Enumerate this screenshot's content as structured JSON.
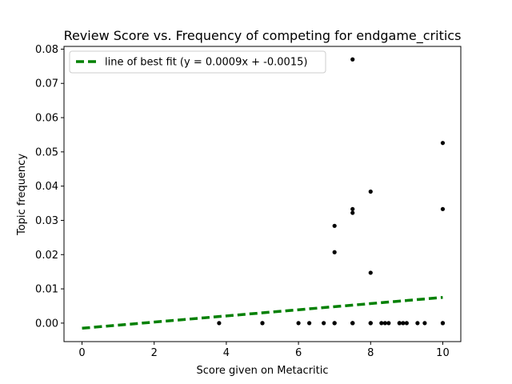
{
  "chart_data": {
    "type": "scatter",
    "title": "Review Score vs. Frequency of competing for endgame_critics",
    "xlabel": "Score given on Metacritic",
    "ylabel": "Topic frequency",
    "xlim": [
      -0.5,
      10.5
    ],
    "ylim": [
      -0.0054,
      0.0808
    ],
    "xticks": [
      0,
      2,
      4,
      6,
      8,
      10
    ],
    "xtick_labels": [
      "0",
      "2",
      "4",
      "6",
      "8",
      "10"
    ],
    "yticks": [
      0.0,
      0.01,
      0.02,
      0.03,
      0.04,
      0.05,
      0.06,
      0.07,
      0.08
    ],
    "ytick_labels": [
      "0.00",
      "0.01",
      "0.02",
      "0.03",
      "0.04",
      "0.05",
      "0.06",
      "0.07",
      "0.08"
    ],
    "grid": false,
    "legend_position": "top-left",
    "points_color": "#000000",
    "points": [
      {
        "x": 3.8,
        "y": 0.0
      },
      {
        "x": 5.0,
        "y": 0.0
      },
      {
        "x": 5.0,
        "y": 0.0
      },
      {
        "x": 6.0,
        "y": 0.0
      },
      {
        "x": 6.3,
        "y": 0.0
      },
      {
        "x": 6.7,
        "y": 0.0
      },
      {
        "x": 7.0,
        "y": 0.0
      },
      {
        "x": 7.0,
        "y": 0.0
      },
      {
        "x": 7.0,
        "y": 0.0207
      },
      {
        "x": 7.0,
        "y": 0.0284
      },
      {
        "x": 7.5,
        "y": 0.0
      },
      {
        "x": 7.5,
        "y": 0.0
      },
      {
        "x": 7.5,
        "y": 0.0
      },
      {
        "x": 7.5,
        "y": 0.0322
      },
      {
        "x": 7.5,
        "y": 0.0333
      },
      {
        "x": 7.5,
        "y": 0.077
      },
      {
        "x": 8.0,
        "y": 0.0
      },
      {
        "x": 8.0,
        "y": 0.0
      },
      {
        "x": 8.0,
        "y": 0.0147
      },
      {
        "x": 8.0,
        "y": 0.0384
      },
      {
        "x": 8.3,
        "y": 0.0
      },
      {
        "x": 8.4,
        "y": 0.0
      },
      {
        "x": 8.5,
        "y": 0.0
      },
      {
        "x": 8.8,
        "y": 0.0
      },
      {
        "x": 8.8,
        "y": 0.0
      },
      {
        "x": 8.9,
        "y": 0.0
      },
      {
        "x": 9.0,
        "y": 0.0
      },
      {
        "x": 9.3,
        "y": 0.0
      },
      {
        "x": 9.5,
        "y": 0.0
      },
      {
        "x": 10.0,
        "y": 0.0
      },
      {
        "x": 10.0,
        "y": 0.0
      },
      {
        "x": 10.0,
        "y": 0.0333
      },
      {
        "x": 10.0,
        "y": 0.0526
      }
    ],
    "fit_line": {
      "label": "line of best fit (y = 0.0009x + -0.0015)",
      "slope": 0.0009,
      "intercept": -0.0015,
      "x_range": [
        0,
        10
      ],
      "color": "#008000",
      "style": "dashed"
    }
  }
}
